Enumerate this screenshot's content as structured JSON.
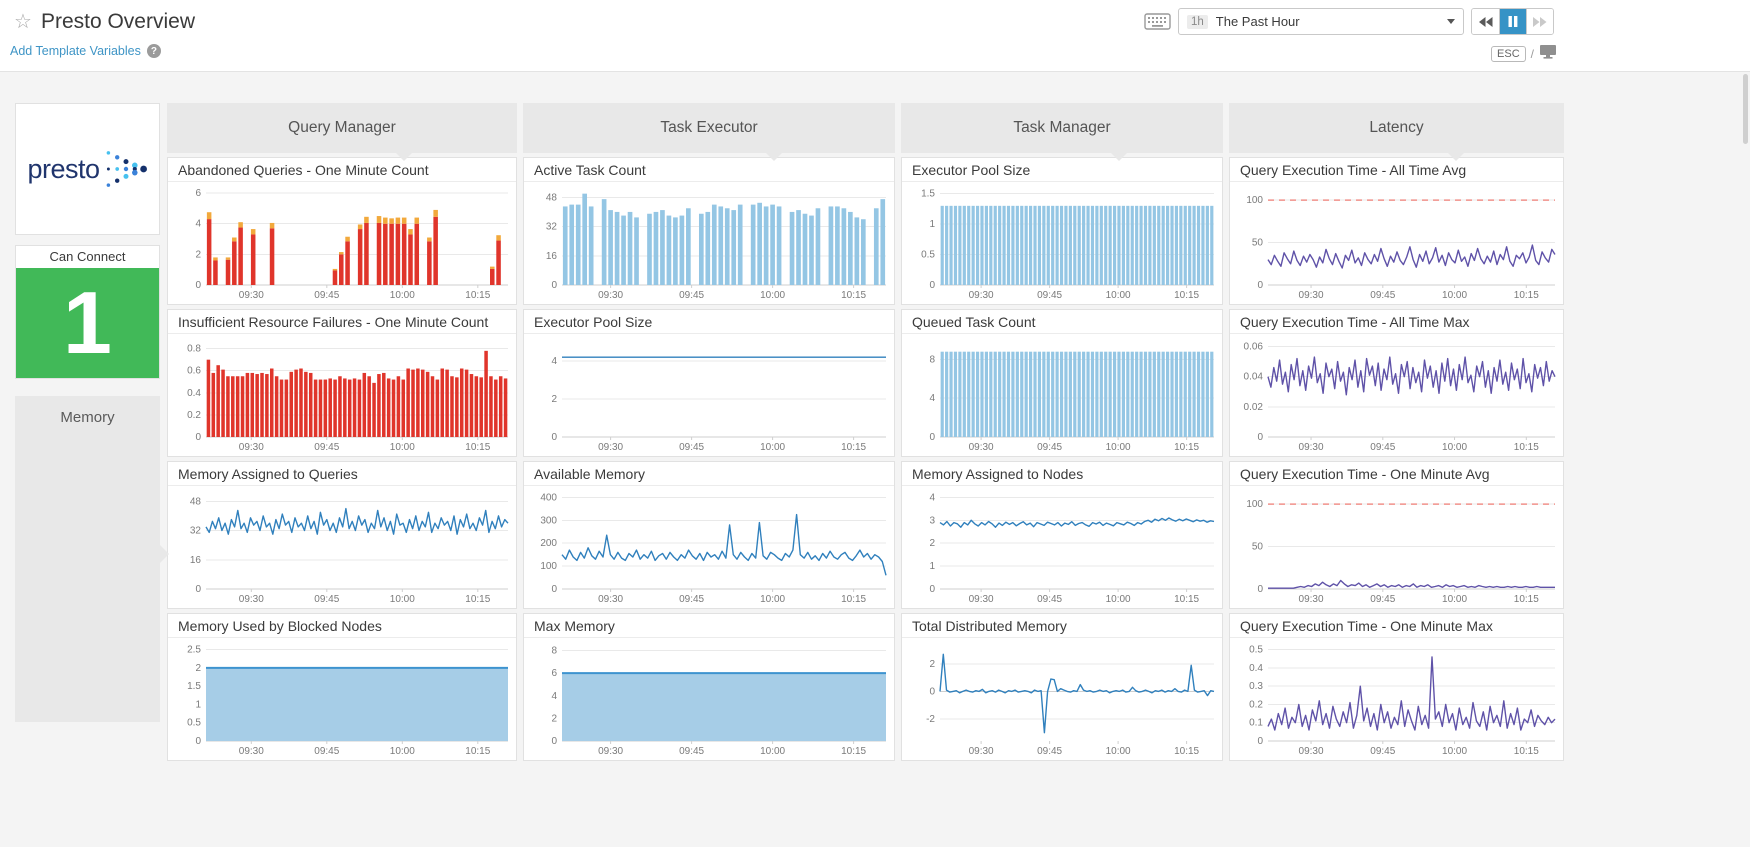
{
  "header": {
    "title": "Presto Overview",
    "add_template_variables": "Add Template Variables",
    "time_range_badge": "1h",
    "time_range_label": "The Past Hour",
    "esc_label": "ESC",
    "slash": "/"
  },
  "sidebar": {
    "logo_text": "presto",
    "can_connect": {
      "title": "Can Connect",
      "value": "1",
      "color": "#41b958"
    },
    "memory_label": "Memory"
  },
  "groups": [
    {
      "label": "Query Manager"
    },
    {
      "label": "Task Executor"
    },
    {
      "label": "Task Manager"
    },
    {
      "label": "Latency"
    }
  ],
  "xticks": [
    "09:30",
    "09:45",
    "10:00",
    "10:15"
  ],
  "colors": {
    "red_bar": "#e0352b",
    "orange_cap": "#f2a93c",
    "light_blue_bar": "#94c6e4",
    "blue_line": "#3080bd",
    "area_fill": "#a6cde7",
    "purple_line": "#5f52a8",
    "threshold_red": "#f0908a",
    "green": "#41b958"
  },
  "chart_data": [
    {
      "group": "Query Manager",
      "title": "Abandoned Queries - One Minute Count",
      "type": "bar",
      "stacked": true,
      "color": "#e0352b",
      "color2": "#f2a93c",
      "yticks": [
        0,
        2,
        4,
        6
      ],
      "ymax": 6.2,
      "values": [
        [
          4.3,
          0.45
        ],
        [
          1.6,
          0.2
        ],
        null,
        [
          1.65,
          0.15
        ],
        [
          2.85,
          0.25
        ],
        [
          3.75,
          0.35
        ],
        null,
        [
          3.3,
          0.35
        ],
        null,
        null,
        [
          3.7,
          0.35
        ],
        null,
        null,
        null,
        null,
        null,
        null,
        null,
        null,
        null,
        [
          0.95,
          0.1
        ],
        [
          2.0,
          0.15
        ],
        [
          2.85,
          0.3
        ],
        null,
        [
          3.65,
          0.3
        ],
        [
          4.05,
          0.4
        ],
        null,
        [
          4.05,
          0.45
        ],
        [
          4.0,
          0.4
        ],
        [
          4.0,
          0.35
        ],
        [
          4.0,
          0.4
        ],
        [
          4.0,
          0.4
        ],
        [
          3.3,
          0.35
        ],
        [
          4.0,
          0.4
        ],
        null,
        [
          2.85,
          0.25
        ],
        [
          4.45,
          0.45
        ],
        null,
        null,
        null,
        null,
        null,
        null,
        null,
        null,
        [
          1.05,
          0.15
        ],
        [
          2.9,
          0.35
        ],
        null
      ]
    },
    {
      "group": "Query Manager",
      "title": "Insufficient Resource Failures - One Minute Count",
      "type": "bar",
      "color": "#e0352b",
      "yticks": [
        0,
        0.2,
        0.4,
        0.6,
        0.8
      ],
      "ymax": 0.86,
      "values": [
        0.7,
        0.58,
        0.65,
        0.61,
        0.55,
        0.55,
        0.55,
        0.55,
        0.58,
        0.58,
        0.57,
        0.58,
        0.57,
        0.62,
        0.55,
        0.52,
        0.52,
        0.59,
        0.61,
        0.62,
        0.59,
        0.58,
        0.52,
        0.52,
        0.52,
        0.53,
        0.52,
        0.55,
        0.53,
        0.52,
        0.53,
        0.52,
        0.58,
        0.55,
        0.49,
        0.57,
        0.58,
        0.53,
        0.52,
        0.55,
        0.52,
        0.62,
        0.61,
        0.62,
        0.61,
        0.59,
        0.55,
        0.52,
        0.62,
        0.61,
        0.55,
        0.54,
        0.62,
        0.61,
        0.57,
        0.55,
        0.54,
        0.78,
        0.55,
        0.52,
        0.55,
        0.53
      ]
    },
    {
      "group": "Query Manager",
      "title": "Memory Assigned to Queries",
      "type": "line",
      "color": "#3080bd",
      "yticks": [
        0,
        16,
        32,
        48
      ],
      "ymax": 52,
      "values": [
        34,
        31,
        37,
        33,
        39,
        32,
        36,
        30,
        38,
        34,
        43,
        33,
        36,
        31,
        39,
        35,
        37,
        32,
        40,
        34,
        36,
        30,
        38,
        33,
        41,
        35,
        37,
        31,
        39,
        34,
        36,
        32,
        40,
        33,
        37,
        30,
        42,
        35,
        38,
        32,
        36,
        31,
        39,
        34,
        44,
        33,
        37,
        32,
        40,
        35,
        38,
        31,
        36,
        33,
        43,
        34,
        39,
        32,
        37,
        30,
        41,
        35,
        36,
        31,
        38,
        33,
        40,
        32,
        37,
        34,
        42,
        31,
        36,
        33,
        39,
        35,
        37,
        32,
        40,
        30,
        38,
        34,
        41,
        33,
        36,
        32,
        39,
        35,
        43,
        31,
        37,
        33,
        40,
        34,
        38,
        36
      ]
    },
    {
      "group": "Query Manager",
      "title": "Memory Used by Blocked Nodes",
      "type": "area",
      "color": "#3d93cf",
      "fill": "#a6cde7",
      "yticks": [
        0,
        0.5,
        1,
        1.5,
        2,
        2.5
      ],
      "ymax": 2.6,
      "n": 2,
      "value": 2
    },
    {
      "group": "Task Executor",
      "title": "Active Task Count",
      "type": "bar",
      "color": "#94c6e4",
      "yticks": [
        0,
        16,
        32,
        48
      ],
      "ymax": 52,
      "values": [
        43,
        44,
        44,
        50,
        43,
        null,
        47,
        41,
        40,
        38,
        40,
        37,
        null,
        39,
        40,
        41,
        38,
        37,
        38,
        42,
        null,
        39,
        40,
        44,
        43,
        42,
        41,
        44,
        null,
        44,
        45,
        43,
        44,
        43,
        null,
        40,
        41,
        39,
        38,
        42,
        null,
        43,
        43,
        42,
        40,
        37,
        36,
        null,
        42,
        47
      ]
    },
    {
      "group": "Task Executor",
      "title": "Executor Pool Size",
      "type": "line",
      "color": "#3080bd",
      "yticks": [
        0,
        2,
        4
      ],
      "ymax": 5,
      "n": 2,
      "value": 4.2
    },
    {
      "group": "Task Executor",
      "title": "Available Memory",
      "type": "line",
      "color": "#3080bd",
      "yticks": [
        0,
        100,
        200,
        300,
        400
      ],
      "ymax": 415,
      "values": [
        150,
        130,
        170,
        140,
        125,
        160,
        135,
        180,
        145,
        130,
        165,
        140,
        235,
        150,
        130,
        160,
        135,
        125,
        155,
        140,
        170,
        130,
        150,
        135,
        165,
        125,
        145,
        155,
        130,
        160,
        140,
        125,
        150,
        135,
        170,
        145,
        130,
        155,
        125,
        160,
        140,
        150,
        130,
        165,
        135,
        280,
        150,
        130,
        160,
        140,
        125,
        155,
        135,
        290,
        145,
        130,
        160,
        150,
        135,
        125,
        155,
        140,
        170,
        325,
        150,
        135,
        160,
        130,
        145,
        125,
        155,
        135,
        165,
        140,
        130,
        150,
        160,
        135,
        125,
        145,
        170,
        140,
        155,
        130,
        150,
        140,
        120,
        60
      ]
    },
    {
      "group": "Task Executor",
      "title": "Max Memory",
      "type": "area",
      "color": "#3d93cf",
      "fill": "#a6cde7",
      "yticks": [
        0,
        2,
        4,
        6,
        8
      ],
      "ymax": 8.4,
      "n": 2,
      "value": 6
    },
    {
      "group": "Task Manager",
      "title": "Executor Pool Size",
      "type": "bar",
      "color": "#94c6e4",
      "yticks": [
        0,
        0.5,
        1,
        1.5
      ],
      "ymax": 1.56,
      "n": 62,
      "value": 1.3
    },
    {
      "group": "Task Manager",
      "title": "Queued Task Count",
      "type": "bar",
      "color": "#94c6e4",
      "yticks": [
        0,
        4,
        8
      ],
      "ymax": 9.8,
      "n": 62,
      "value": 8.8
    },
    {
      "group": "Task Manager",
      "title": "Memory Assigned to Nodes",
      "type": "line",
      "color": "#3080bd",
      "yticks": [
        0,
        1,
        2,
        3,
        4
      ],
      "ymax": 4.15,
      "values": [
        2.9,
        2.8,
        2.95,
        2.75,
        2.9,
        2.85,
        2.7,
        2.9,
        2.8,
        3.0,
        2.85,
        2.75,
        2.9,
        2.8,
        2.95,
        2.85,
        2.7,
        2.88,
        2.78,
        2.92,
        2.82,
        2.9,
        2.76,
        2.86,
        2.94,
        2.8,
        2.88,
        2.72,
        2.9,
        2.84,
        2.78,
        2.92,
        2.86,
        2.8,
        2.9,
        2.75,
        2.88,
        2.82,
        2.94,
        2.78,
        2.86,
        2.9,
        2.8,
        2.74,
        2.9,
        2.84,
        2.92,
        2.78,
        2.88,
        2.82,
        2.76,
        2.9,
        2.85,
        2.8,
        2.92,
        2.86,
        2.78,
        2.9,
        2.84,
        2.95,
        3.0,
        2.92,
        3.05,
        2.98,
        3.08,
        3.0,
        3.1,
        3.02,
        2.96,
        3.05,
        2.98,
        3.06,
        3.0,
        2.94,
        3.02,
        2.96,
        3.0,
        2.92,
        2.98,
        2.95
      ]
    },
    {
      "group": "Task Manager",
      "title": "Total Distributed Memory",
      "type": "line",
      "color": "#3080bd",
      "yticks": [
        -2,
        0,
        2
      ],
      "ymin": -3.6,
      "ymax": 3.3,
      "values": [
        0,
        2.7,
        0.1,
        -0.05,
        0,
        0.05,
        -0.1,
        0,
        0.1,
        0,
        -0.05,
        0.05,
        0,
        0.15,
        -0.1,
        0,
        0.05,
        -0.05,
        0.1,
        0,
        -0.1,
        0.05,
        0,
        0.1,
        -0.05,
        0,
        0.05,
        0,
        -0.1,
        0.1,
        0,
        0.05,
        -3,
        0,
        0.9,
        0.85,
        0,
        0.2,
        0.1,
        0,
        -0.05,
        0.05,
        0,
        0.5,
        0.1,
        0,
        0.05,
        -0.05,
        0,
        0.1,
        0,
        0.05,
        -0.1,
        0,
        0.05,
        0,
        0.1,
        -0.05,
        0,
        0.3,
        0.05,
        -0.05,
        0,
        0.1,
        0,
        -0.1,
        0.05,
        0,
        0.1,
        -0.05,
        0.05,
        0,
        0.2,
        0,
        -0.05,
        0.1,
        0,
        1.9,
        0.1,
        -0.05,
        0,
        0.05,
        -0.3,
        0.05,
        0
      ]
    },
    {
      "group": "Latency",
      "title": "Query Execution Time - All Time Avg",
      "type": "line",
      "color": "#5f52a8",
      "yticks": [
        0,
        50,
        100
      ],
      "ymax": 112,
      "threshold": 100,
      "values": [
        30,
        24,
        35,
        28,
        22,
        38,
        31,
        25,
        40,
        29,
        23,
        34,
        27,
        36,
        30,
        21,
        33,
        26,
        42,
        31,
        24,
        37,
        28,
        20,
        35,
        29,
        41,
        26,
        32,
        23,
        38,
        30,
        25,
        36,
        28,
        43,
        31,
        22,
        34,
        27,
        39,
        29,
        24,
        33,
        45,
        30,
        21,
        36,
        28,
        40,
        25,
        32,
        44,
        27,
        35,
        23,
        38,
        30,
        26,
        41,
        28,
        33,
        22,
        37,
        29,
        43,
        31,
        25,
        34,
        27,
        40,
        24,
        36,
        30,
        45,
        28,
        22,
        35,
        31,
        38,
        26,
        33,
        47,
        29,
        24,
        39,
        32,
        27,
        42,
        36
      ]
    },
    {
      "group": "Latency",
      "title": "Query Execution Time - All Time Max",
      "type": "line",
      "color": "#5f52a8",
      "yticks": [
        0,
        0.02,
        0.04,
        0.06
      ],
      "ymax": 0.063,
      "values": [
        0.04,
        0.033,
        0.046,
        0.037,
        0.051,
        0.035,
        0.043,
        0.03,
        0.048,
        0.038,
        0.052,
        0.034,
        0.044,
        0.031,
        0.047,
        0.039,
        0.053,
        0.036,
        0.042,
        0.029,
        0.049,
        0.04,
        0.045,
        0.032,
        0.05,
        0.037,
        0.043,
        0.028,
        0.046,
        0.038,
        0.051,
        0.033,
        0.044,
        0.03,
        0.052,
        0.041,
        0.047,
        0.034,
        0.049,
        0.031,
        0.045,
        0.038,
        0.053,
        0.035,
        0.042,
        0.029,
        0.048,
        0.04,
        0.05,
        0.032,
        0.046,
        0.036,
        0.043,
        0.03,
        0.051,
        0.039,
        0.047,
        0.033,
        0.044,
        0.029,
        0.049,
        0.037,
        0.052,
        0.034,
        0.045,
        0.031,
        0.048,
        0.038,
        0.053,
        0.036,
        0.041,
        0.03,
        0.047,
        0.04,
        0.05,
        0.033,
        0.044,
        0.029,
        0.046,
        0.037,
        0.051,
        0.035,
        0.043,
        0.031,
        0.049,
        0.038,
        0.045,
        0.032,
        0.052,
        0.036,
        0.042,
        0.03,
        0.048,
        0.039,
        0.046,
        0.034,
        0.05,
        0.037,
        0.044,
        0.04
      ]
    },
    {
      "group": "Latency",
      "title": "Query Execution Time - One Minute Avg",
      "type": "line",
      "color": "#5f52a8",
      "yticks": [
        0,
        50,
        100
      ],
      "ymax": 112,
      "threshold": 100,
      "values": [
        1,
        1,
        1,
        1,
        1,
        1,
        1,
        1,
        2,
        3,
        2,
        4,
        3,
        6,
        4,
        8,
        5,
        3,
        6,
        4,
        10,
        6,
        3,
        5,
        4,
        7,
        3,
        5,
        2,
        4,
        6,
        3,
        5,
        2,
        4,
        3,
        5,
        2,
        4,
        3,
        6,
        2,
        4,
        3,
        5,
        2,
        3,
        4,
        2,
        5,
        3,
        4,
        2,
        3,
        4,
        2,
        3,
        2,
        4,
        3,
        2,
        3,
        2,
        3,
        2,
        2,
        3,
        2,
        3,
        2,
        2,
        3,
        2,
        2,
        3,
        2,
        2,
        2,
        2,
        2
      ]
    },
    {
      "group": "Latency",
      "title": "Query Execution Time - One Minute Max",
      "type": "line",
      "color": "#5f52a8",
      "yticks": [
        0,
        0.1,
        0.2,
        0.3,
        0.4,
        0.5
      ],
      "ymax": 0.52,
      "values": [
        0.08,
        0.12,
        0.06,
        0.15,
        0.09,
        0.18,
        0.07,
        0.13,
        0.1,
        0.2,
        0.08,
        0.14,
        0.06,
        0.17,
        0.11,
        0.22,
        0.09,
        0.15,
        0.07,
        0.19,
        0.12,
        0.08,
        0.16,
        0.1,
        0.21,
        0.07,
        0.14,
        0.3,
        0.11,
        0.18,
        0.08,
        0.15,
        0.06,
        0.2,
        0.1,
        0.16,
        0.07,
        0.13,
        0.09,
        0.22,
        0.08,
        0.17,
        0.11,
        0.06,
        0.19,
        0.09,
        0.14,
        0.07,
        0.46,
        0.12,
        0.16,
        0.08,
        0.2,
        0.1,
        0.15,
        0.06,
        0.18,
        0.09,
        0.13,
        0.07,
        0.21,
        0.11,
        0.08,
        0.16,
        0.06,
        0.19,
        0.1,
        0.14,
        0.08,
        0.22,
        0.07,
        0.15,
        0.09,
        0.18,
        0.06,
        0.12,
        0.1,
        0.17,
        0.08,
        0.14,
        0.11,
        0.09,
        0.13,
        0.1,
        0.12
      ]
    }
  ]
}
